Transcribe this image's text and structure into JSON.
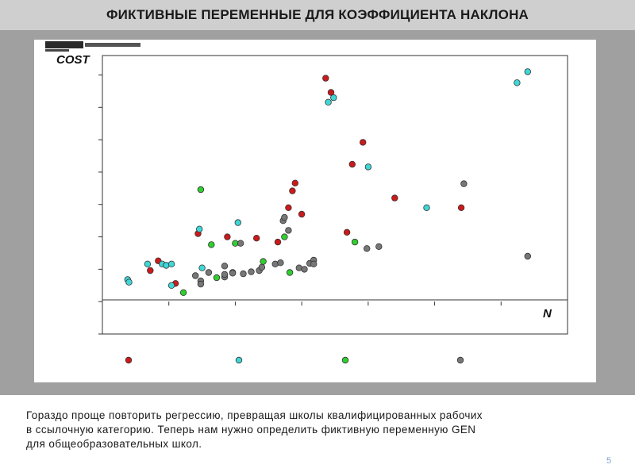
{
  "slide": {
    "title": "ФИКТИВНЫЕ ПЕРЕМЕННЫЕ ДЛЯ КОЭФФИЦИЕНТА НАКЛОНА",
    "text_lines": [
      "Гораздо проще повторить регрессию, превращая школы квалифицированных рабочих",
      "в ссылочную категорию. Теперь нам нужно определить фиктивную переменную GEN",
      "для общеобразовательных школ."
    ],
    "page_number": "5"
  },
  "colors": {
    "title_bar": "#cfcfcf",
    "band": "#a0a0a0",
    "red": "#cc1a1a",
    "cyan": "#3fd6d6",
    "green": "#2fcf2f",
    "gray": "#777777"
  },
  "chart_data": {
    "type": "scatter",
    "ylabel": "COST",
    "xlabel": "N",
    "xlim": [
      0,
      350
    ],
    "ylim": [
      -50,
      380
    ],
    "grid": false,
    "legend": "bottom (markers only)",
    "series": [
      {
        "color": "red",
        "points": [
          [
            36,
            48
          ],
          [
            42,
            63
          ],
          [
            55,
            28
          ],
          [
            72,
            105
          ],
          [
            94,
            100
          ],
          [
            116,
            98
          ],
          [
            140,
            145
          ],
          [
            132,
            92
          ],
          [
            150,
            135
          ],
          [
            143,
            171
          ],
          [
            145,
            183
          ],
          [
            168,
            345
          ],
          [
            172,
            323
          ],
          [
            184,
            107
          ],
          [
            188,
            212
          ],
          [
            196,
            246
          ],
          [
            220,
            160
          ],
          [
            270,
            145
          ]
        ]
      },
      {
        "color": "cyan",
        "points": [
          [
            19,
            34
          ],
          [
            20,
            30
          ],
          [
            34,
            58
          ],
          [
            45,
            58
          ],
          [
            48,
            56
          ],
          [
            52,
            58
          ],
          [
            52,
            25
          ],
          [
            73,
            112
          ],
          [
            75,
            52
          ],
          [
            102,
            122
          ],
          [
            170,
            308
          ],
          [
            174,
            315
          ],
          [
            200,
            208
          ],
          [
            244,
            145
          ],
          [
            312,
            338
          ],
          [
            320,
            355
          ]
        ]
      },
      {
        "color": "green",
        "points": [
          [
            61,
            14
          ],
          [
            74,
            173
          ],
          [
            82,
            88
          ],
          [
            86,
            37
          ],
          [
            98,
            45
          ],
          [
            100,
            90
          ],
          [
            121,
            62
          ],
          [
            137,
            100
          ],
          [
            141,
            45
          ],
          [
            190,
            92
          ]
        ]
      },
      {
        "color": "gray",
        "points": [
          [
            70,
            40
          ],
          [
            74,
            32
          ],
          [
            74,
            27
          ],
          [
            80,
            45
          ],
          [
            92,
            38
          ],
          [
            92,
            42
          ],
          [
            92,
            55
          ],
          [
            98,
            44
          ],
          [
            104,
            90
          ],
          [
            106,
            43
          ],
          [
            112,
            46
          ],
          [
            118,
            48
          ],
          [
            120,
            53
          ],
          [
            130,
            58
          ],
          [
            134,
            60
          ],
          [
            136,
            125
          ],
          [
            137,
            130
          ],
          [
            140,
            110
          ],
          [
            148,
            52
          ],
          [
            152,
            50
          ],
          [
            156,
            59
          ],
          [
            159,
            64
          ],
          [
            159,
            58
          ],
          [
            199,
            82
          ],
          [
            208,
            85
          ],
          [
            272,
            182
          ],
          [
            320,
            70
          ]
        ]
      }
    ],
    "legend_markers": [
      "red",
      "cyan",
      "green",
      "gray"
    ]
  }
}
